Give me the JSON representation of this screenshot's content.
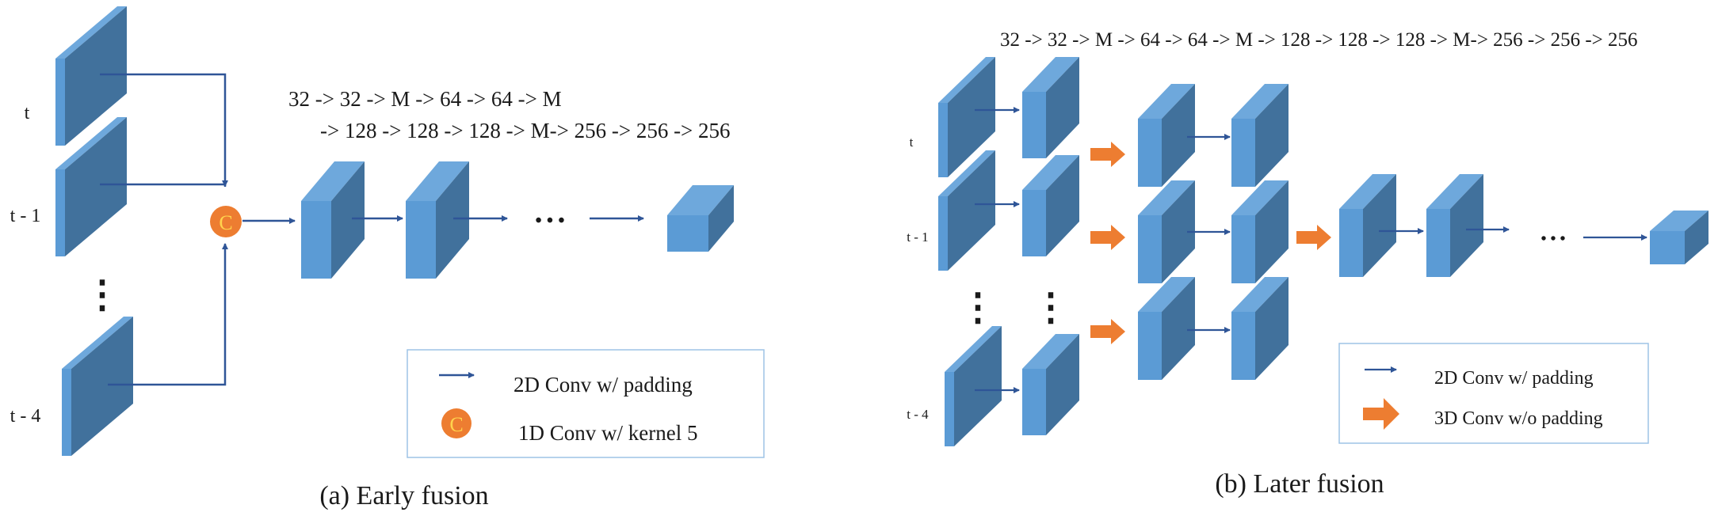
{
  "colors": {
    "block_front": "#5b9bd5",
    "block_side": "#41719c",
    "block_top": "#6ea8dc",
    "arrow": "#2f5597",
    "orange": "#ed7d31",
    "concat_text": "#ffd34d",
    "legend_border": "#9dc3e6"
  },
  "early": {
    "frames": [
      "t",
      "t - 1",
      "t - 4"
    ],
    "ops_line1": "32 -> 32 -> M -> 64 -> 64 -> M",
    "ops_line2": "-> 128 -> 128 -> 128 -> M-> 256 -> 256 -> 256",
    "concat_symbol": "C",
    "ellipsis_vertical": "⋮",
    "ellipsis_horizontal": "• • •",
    "legend": {
      "conv2d": "2D Conv w/ padding",
      "conv1d": "1D Conv w/ kernel 5"
    },
    "caption": "(a) Early fusion"
  },
  "later": {
    "frames": [
      "t",
      "t - 1",
      "t - 4"
    ],
    "ops_line": "32 -> 32 -> M -> 64 -> 64 -> M -> 128 -> 128 -> 128 -> M-> 256 -> 256 -> 256",
    "ellipsis_vertical": "⋮",
    "ellipsis_horizontal": "• • •",
    "legend": {
      "conv2d": "2D Conv w/ padding",
      "conv3d": "3D Conv w/o padding"
    },
    "caption": "(b) Later fusion"
  }
}
